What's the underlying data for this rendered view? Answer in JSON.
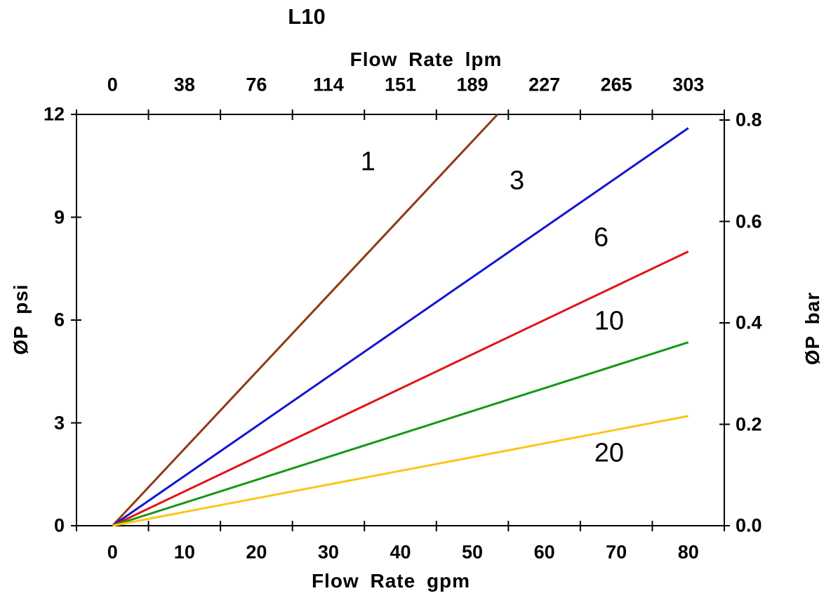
{
  "chart_data": {
    "type": "line",
    "title": "L10",
    "grid": false,
    "legend": "micron-rating labels placed on curves",
    "axes": {
      "top": {
        "label": "Flow Rate lpm",
        "tick_labels": [
          "0",
          "38",
          "76",
          "114",
          "151",
          "189",
          "227",
          "265",
          "303"
        ],
        "range": [
          0,
          303
        ]
      },
      "bottom": {
        "label": "Flow Rate gpm",
        "tick_labels": [
          "0",
          "10",
          "20",
          "30",
          "40",
          "50",
          "60",
          "70",
          "80"
        ],
        "range": [
          0,
          80
        ]
      },
      "left": {
        "label": "ØP psi",
        "tick_labels": [
          "0",
          "3",
          "6",
          "9",
          "12"
        ],
        "range": [
          0,
          12
        ]
      },
      "right": {
        "label": "ØP bar",
        "tick_labels": [
          "0.0",
          "0.2",
          "0.4",
          "0.6",
          "0.8"
        ],
        "range": [
          0,
          0.8
        ]
      }
    },
    "series": [
      {
        "label": "1",
        "micron_rating": 1,
        "color": "#8e3a10",
        "x_gpm": [
          0,
          53.5
        ],
        "y_psi": [
          0,
          12.0
        ],
        "label_at_gpm_psi": [
          35.5,
          10.6
        ]
      },
      {
        "label": "3",
        "micron_rating": 3,
        "color": "#1414d2",
        "x_gpm": [
          0,
          80
        ],
        "y_psi": [
          0,
          11.6
        ],
        "label_at_gpm_psi": [
          56.2,
          10.05
        ]
      },
      {
        "label": "6",
        "micron_rating": 6,
        "color": "#e11414",
        "x_gpm": [
          0,
          80
        ],
        "y_psi": [
          0,
          8.0
        ],
        "label_at_gpm_psi": [
          67.9,
          8.4
        ]
      },
      {
        "label": "10",
        "micron_rating": 10,
        "color": "#169616",
        "x_gpm": [
          0,
          80
        ],
        "y_psi": [
          0,
          5.35
        ],
        "label_at_gpm_psi": [
          69.0,
          5.95
        ]
      },
      {
        "label": "20",
        "micron_rating": 20,
        "color": "#fac61e",
        "x_gpm": [
          0,
          80
        ],
        "y_psi": [
          0,
          3.2
        ],
        "label_at_gpm_psi": [
          69.0,
          2.1
        ]
      }
    ],
    "frame_color": "#000000",
    "background_color": "#ffffff"
  }
}
